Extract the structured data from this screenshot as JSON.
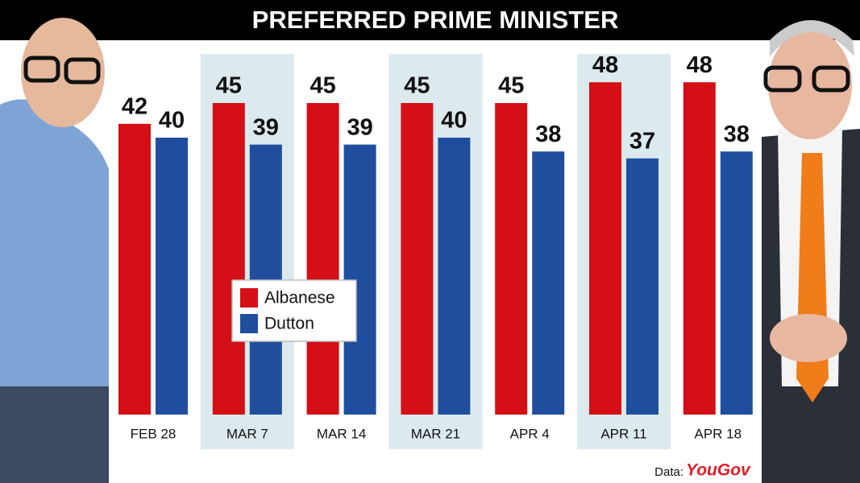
{
  "chart_data": {
    "type": "bar",
    "title": "PREFERRED PRIME MINISTER",
    "categories": [
      "FEB 28",
      "MAR 7",
      "MAR 14",
      "MAR 21",
      "APR 4",
      "APR 11",
      "APR 18"
    ],
    "series": [
      {
        "name": "Albanese",
        "color": "#d40f16",
        "values": [
          42,
          45,
          45,
          45,
          45,
          48,
          48
        ]
      },
      {
        "name": "Dutton",
        "color": "#1f4e9f",
        "values": [
          40,
          39,
          39,
          40,
          38,
          37,
          38
        ]
      }
    ],
    "legend": "left",
    "source_label": "Data:",
    "source": "YouGov"
  }
}
